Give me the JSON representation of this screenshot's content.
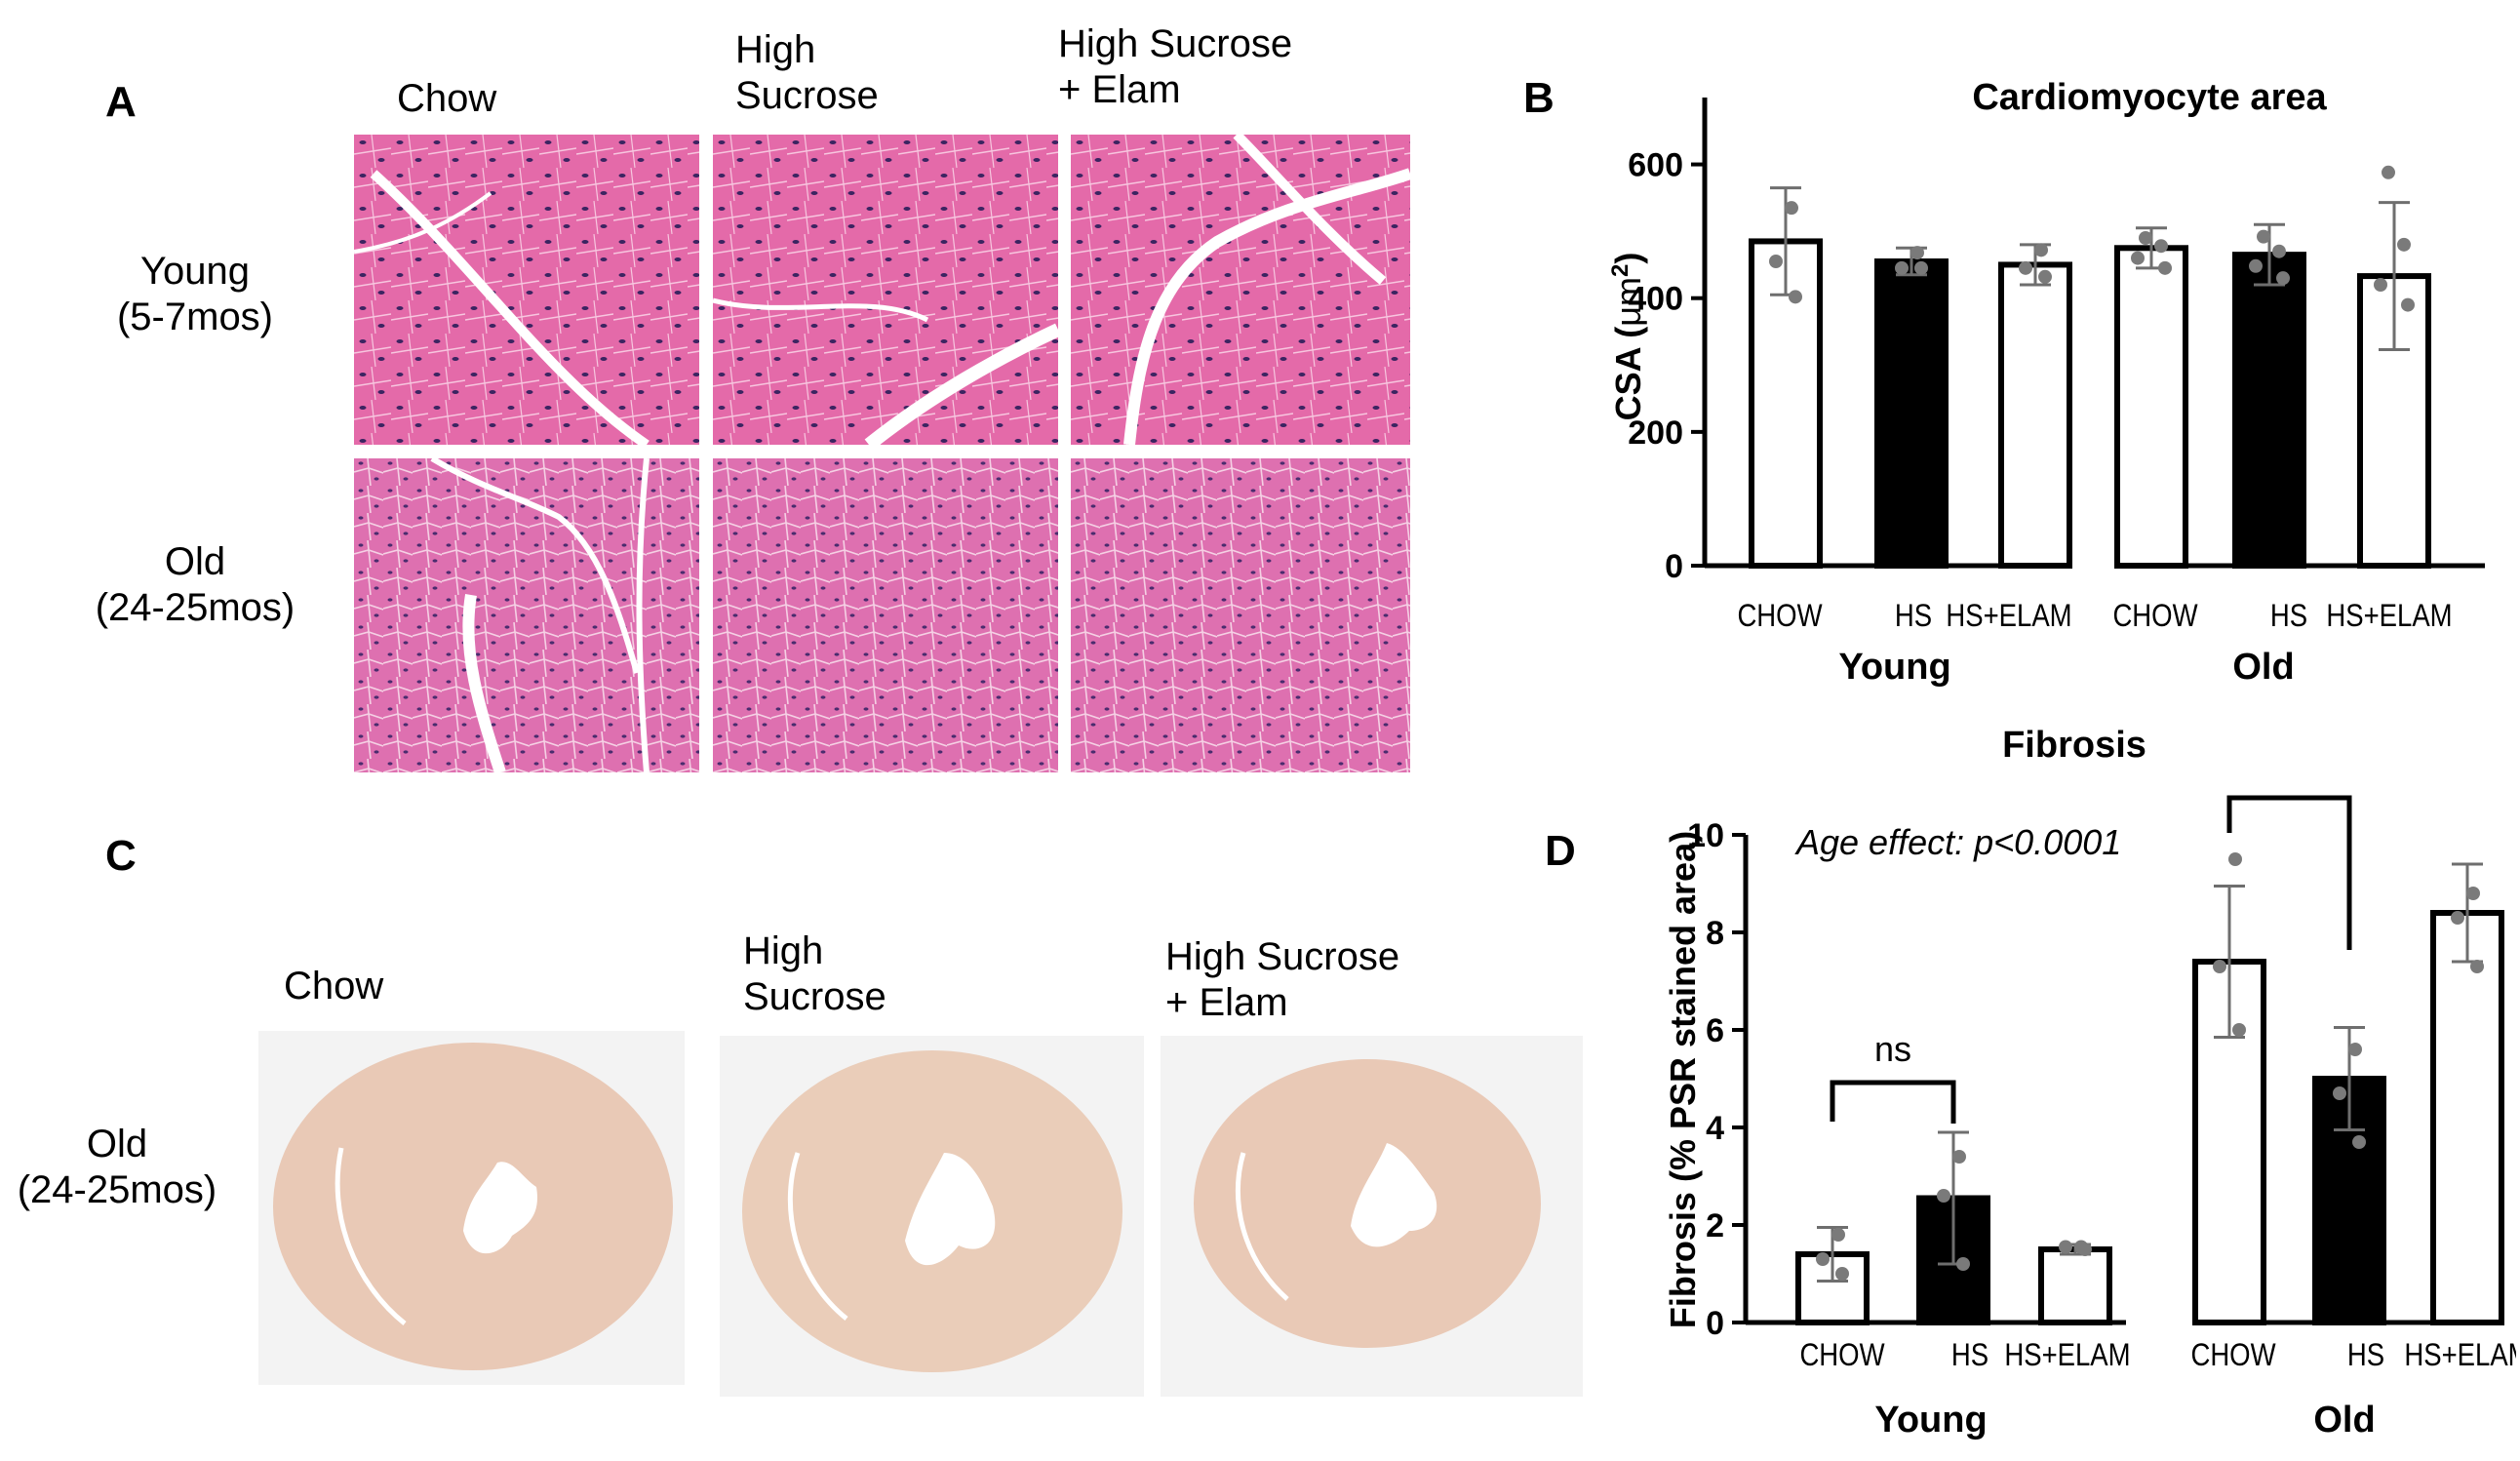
{
  "panels": {
    "A": "A",
    "B": "B",
    "C": "C",
    "D": "D"
  },
  "panelA": {
    "columns": [
      "Chow",
      "High\nSucrose",
      "High Sucrose\n+ Elam"
    ],
    "rows": [
      "Young\n(5-7mos)",
      "Old\n(24-25mos)"
    ]
  },
  "panelC": {
    "columns": [
      "Chow",
      "High\nSucrose",
      "High Sucrose\n+ Elam"
    ],
    "row": "Old\n(24-25mos)"
  },
  "chart_data": [
    {
      "id": "B",
      "type": "bar",
      "title": "Cardiomyocyte area",
      "ylabel_parts": [
        "CSA (",
        "μm",
        "2",
        ")"
      ],
      "ylim": [
        0,
        700
      ],
      "yticks": [
        0,
        200,
        400,
        600
      ],
      "groups": [
        "Young",
        "Old"
      ],
      "categories": [
        "CHOW",
        "HS",
        "HS+ELAM"
      ],
      "bar_fills": [
        "#ffffff",
        "#000000",
        "#ffffff"
      ],
      "values": [
        [
          485,
          455,
          450
        ],
        [
          475,
          465,
          433
        ]
      ],
      "errors": [
        [
          80,
          20,
          30
        ],
        [
          30,
          45,
          110
        ]
      ],
      "points": [
        [
          [
            535,
            455,
            402
          ],
          [
            468,
            445,
            445
          ],
          [
            472,
            445,
            432
          ]
        ],
        [
          [
            490,
            478,
            460,
            445
          ],
          [
            492,
            470,
            448,
            430
          ],
          [
            588,
            480,
            420,
            390
          ]
        ]
      ],
      "grid": false
    },
    {
      "id": "D",
      "type": "bar",
      "title": "Fibrosis",
      "ylabel": "Fibrosis (% PSR stained area)",
      "annotation": "Age effect: p<0.0001",
      "ylim": [
        0,
        10
      ],
      "yticks": [
        0,
        2,
        4,
        6,
        8,
        10
      ],
      "groups": [
        "Young",
        "Old"
      ],
      "categories": [
        "CHOW",
        "HS",
        "HS+ELAM"
      ],
      "bar_fills": [
        "#ffffff",
        "#000000",
        "#ffffff"
      ],
      "values": [
        [
          1.4,
          2.55,
          1.5
        ],
        [
          7.4,
          5.0,
          8.4
        ]
      ],
      "errors": [
        [
          0.55,
          1.35,
          0.1
        ],
        [
          1.55,
          1.05,
          1.0
        ]
      ],
      "points": [
        [
          [
            1.8,
            1.3,
            1.0
          ],
          [
            3.4,
            2.6,
            1.2
          ],
          [
            1.55,
            1.55,
            1.5
          ]
        ],
        [
          [
            9.5,
            7.3,
            6.0
          ],
          [
            5.6,
            4.7,
            3.7
          ],
          [
            8.8,
            8.3,
            7.3
          ]
        ]
      ],
      "comparisons": [
        {
          "label": "ns",
          "group": 0,
          "from": 0,
          "to": 1
        },
        {
          "group": 1,
          "from": 0,
          "to": 1
        }
      ],
      "grid": false
    }
  ]
}
